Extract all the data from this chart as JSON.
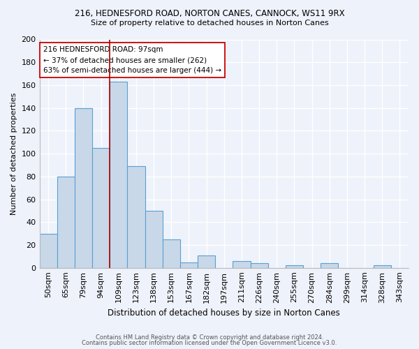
{
  "title1": "216, HEDNESFORD ROAD, NORTON CANES, CANNOCK, WS11 9RX",
  "title2": "Size of property relative to detached houses in Norton Canes",
  "xlabel": "Distribution of detached houses by size in Norton Canes",
  "ylabel": "Number of detached properties",
  "bin_labels": [
    "50sqm",
    "65sqm",
    "79sqm",
    "94sqm",
    "109sqm",
    "123sqm",
    "138sqm",
    "153sqm",
    "167sqm",
    "182sqm",
    "197sqm",
    "211sqm",
    "226sqm",
    "240sqm",
    "255sqm",
    "270sqm",
    "284sqm",
    "299sqm",
    "314sqm",
    "328sqm",
    "343sqm"
  ],
  "bin_values": [
    30,
    80,
    140,
    105,
    163,
    89,
    50,
    25,
    5,
    11,
    0,
    6,
    4,
    0,
    2,
    0,
    4,
    0,
    0,
    2,
    0
  ],
  "bar_color": "#c8d8e8",
  "bar_edge_color": "#5a9fd4",
  "red_line_x": 3.5,
  "annotation_line1": "216 HEDNESFORD ROAD: 97sqm",
  "annotation_line2": "← 37% of detached houses are smaller (262)",
  "annotation_line3": "63% of semi-detached houses are larger (444) →",
  "annotation_box_color": "#ffffff",
  "annotation_box_edge": "#cc0000",
  "footer1": "Contains HM Land Registry data © Crown copyright and database right 2024.",
  "footer2": "Contains public sector information licensed under the Open Government Licence v3.0.",
  "bg_color": "#eef2fb",
  "grid_color": "#ffffff",
  "ylim": [
    0,
    200
  ],
  "yticks": [
    0,
    20,
    40,
    60,
    80,
    100,
    120,
    140,
    160,
    180,
    200
  ]
}
